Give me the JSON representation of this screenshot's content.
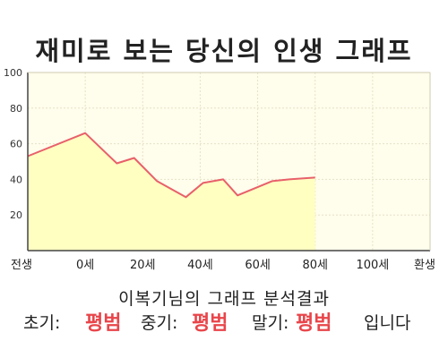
{
  "chart_data": {
    "type": "area",
    "title": "재미로 보는 당신의 인생 그래프",
    "xlabel": "",
    "ylabel": "",
    "x_tick_labels": [
      "전생",
      "0세",
      "20세",
      "40세",
      "60세",
      "80세",
      "100세",
      "환생"
    ],
    "y_ticks": [
      20,
      40,
      60,
      80,
      100
    ],
    "ylim": [
      0,
      100
    ],
    "grid": true,
    "legend": "none",
    "series": [
      {
        "values": [
          53,
          66,
          49,
          52,
          39,
          30,
          38,
          40,
          31,
          39,
          40,
          41
        ],
        "line_color": "#e8606a",
        "fill_color": "#ffffc2"
      }
    ],
    "x_positions": [
      -1,
      0,
      0.55,
      0.85,
      1.25,
      1.75,
      2.05,
      2.4,
      2.65,
      3.25,
      3.55,
      4.0
    ],
    "x_tick_positions": [
      -1,
      0,
      1,
      2,
      3,
      4,
      5,
      6
    ],
    "x_range": [
      -1,
      6
    ]
  },
  "summary": {
    "subtitle": "이복기님의 그래프 분석결과",
    "early_label": "초기:",
    "early_value": "평범",
    "mid_label": "중기:",
    "mid_value": "평범",
    "late_label": "말기:",
    "late_value": "평범",
    "suffix": "입니다"
  },
  "colors": {
    "plot_bg": "#fffdec",
    "axis": "#444444",
    "grid": "#e6e2c8",
    "accent": "#e8454a"
  }
}
